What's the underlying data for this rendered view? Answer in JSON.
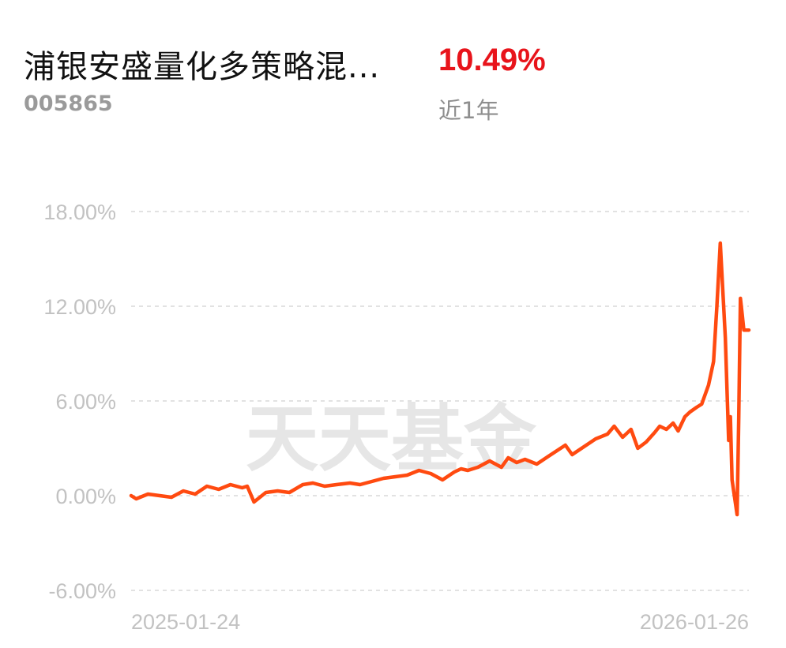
{
  "fund": {
    "name": "浦银安盛量化多策略混...",
    "code": "005865",
    "return_value": "10.49%",
    "return_period": "近1年"
  },
  "watermark": "天天基金",
  "colors": {
    "line": "#ff4a10",
    "return": "#e8141b",
    "grid": "#e2e2e2",
    "ticks": "#c2c2c2"
  },
  "chart_data": {
    "type": "line",
    "title": "",
    "xlabel": "",
    "ylabel": "",
    "ylim": [
      -6,
      18
    ],
    "yticks": [
      18,
      12,
      6,
      0,
      -6
    ],
    "ytick_labels": [
      "18.00%",
      "12.00%",
      "6.00%",
      "0.00%",
      "-6.00%"
    ],
    "xtick_labels": [
      "2025-01-24",
      "2026-01-26"
    ],
    "x_range": [
      "2025-01-24",
      "2026-01-26"
    ],
    "grid": true,
    "series": [
      {
        "name": "",
        "x": [
          "2025-01-24",
          "2025-01-27",
          "2025-02-03",
          "2025-02-10",
          "2025-02-17",
          "2025-02-24",
          "2025-03-03",
          "2025-03-10",
          "2025-03-17",
          "2025-03-24",
          "2025-03-31",
          "2025-04-03",
          "2025-04-07",
          "2025-04-14",
          "2025-04-21",
          "2025-04-28",
          "2025-05-06",
          "2025-05-12",
          "2025-05-19",
          "2025-05-26",
          "2025-06-03",
          "2025-06-09",
          "2025-06-16",
          "2025-06-23",
          "2025-06-30",
          "2025-07-07",
          "2025-07-14",
          "2025-07-21",
          "2025-07-28",
          "2025-08-04",
          "2025-08-08",
          "2025-08-12",
          "2025-08-18",
          "2025-08-25",
          "2025-09-01",
          "2025-09-05",
          "2025-09-10",
          "2025-09-15",
          "2025-09-22",
          "2025-09-29",
          "2025-10-09",
          "2025-10-13",
          "2025-10-20",
          "2025-10-27",
          "2025-11-03",
          "2025-11-07",
          "2025-11-12",
          "2025-11-17",
          "2025-11-21",
          "2025-11-26",
          "2025-12-01",
          "2025-12-04",
          "2025-12-08",
          "2025-12-12",
          "2025-12-15",
          "2025-12-19",
          "2025-12-22",
          "2025-12-26",
          "2025-12-29",
          "2026-01-02",
          "2026-01-05",
          "2026-01-07",
          "2026-01-09",
          "2026-01-12",
          "2026-01-14",
          "2026-01-15",
          "2026-01-16",
          "2026-01-19",
          "2026-01-20",
          "2026-01-21",
          "2026-01-22",
          "2026-01-23",
          "2026-01-26"
        ],
        "y": [
          0.0,
          -0.2,
          0.1,
          0.0,
          -0.1,
          0.3,
          0.1,
          0.6,
          0.4,
          0.7,
          0.5,
          0.6,
          -0.4,
          0.2,
          0.3,
          0.2,
          0.7,
          0.8,
          0.6,
          0.7,
          0.8,
          0.7,
          0.9,
          1.1,
          1.2,
          1.3,
          1.6,
          1.4,
          1.0,
          1.5,
          1.7,
          1.6,
          1.8,
          2.2,
          1.8,
          2.4,
          2.1,
          2.3,
          2.0,
          2.5,
          3.2,
          2.6,
          3.1,
          3.6,
          3.9,
          4.4,
          3.7,
          4.2,
          3.0,
          3.4,
          4.0,
          4.4,
          4.2,
          4.6,
          4.1,
          5.0,
          5.3,
          5.6,
          5.8,
          7.0,
          8.5,
          12.0,
          16.0,
          10.0,
          3.5,
          5.0,
          1.0,
          -1.2,
          5.0,
          12.5,
          11.5,
          10.49,
          10.49
        ]
      }
    ]
  }
}
